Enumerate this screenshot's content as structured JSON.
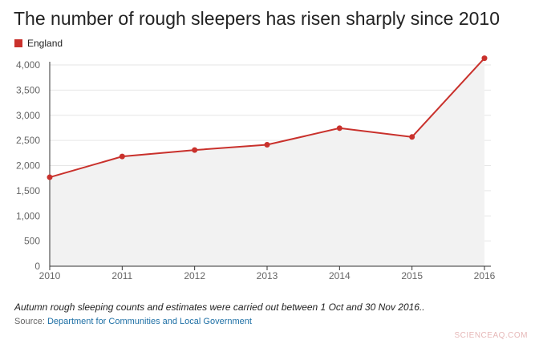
{
  "title": "The number of rough sleepers has risen sharply since 2010",
  "colors": {
    "series": "#c9312c",
    "area": "#f2f2f2",
    "grid": "#e6e6e6",
    "axis": "#333333"
  },
  "chart_data": {
    "type": "line",
    "categories": [
      "2010",
      "2011",
      "2012",
      "2013",
      "2014",
      "2015",
      "2016"
    ],
    "series": [
      {
        "name": "England",
        "values": [
          1768,
          2181,
          2309,
          2414,
          2744,
          2569,
          4134
        ]
      }
    ],
    "ylim": [
      0,
      4000
    ],
    "yticks": [
      "0",
      "500",
      "1,000",
      "1,500",
      "2,000",
      "2,500",
      "3,000",
      "3,500",
      "4,000"
    ],
    "ytick_values": [
      0,
      500,
      1000,
      1500,
      2000,
      2500,
      3000,
      3500,
      4000
    ],
    "grid": true,
    "legend_position": "top-left",
    "area_fill": true
  },
  "footnote": "Autumn rough sleeping counts and estimates were carried out between 1 Oct and 30 Nov 2016..",
  "source": {
    "label": "Source:",
    "link_text": "Department for Communities and Local Government"
  },
  "watermark": "SCIENCEAQ.COM"
}
